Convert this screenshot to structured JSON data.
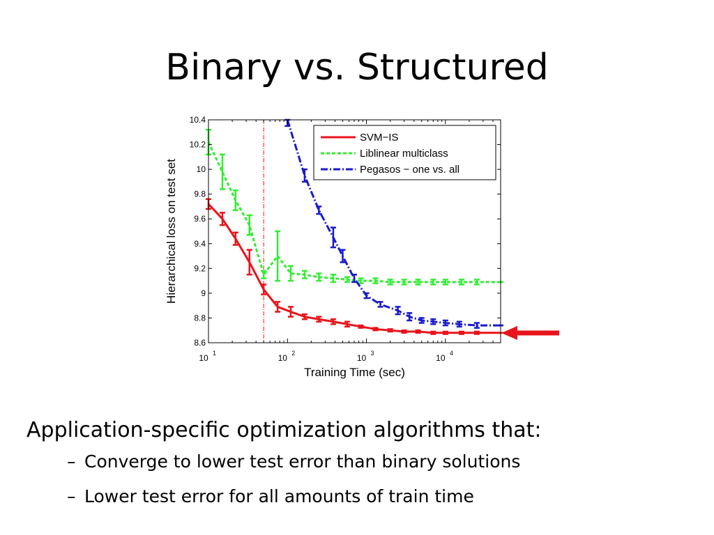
{
  "slide": {
    "title": "Binary vs. Structured",
    "bullet_main": "Application-specific optimization algorithms that:",
    "sub_bullets": [
      {
        "marker": "–",
        "text": "Converge to lower test error than binary solutions"
      },
      {
        "marker": "–",
        "text": "Lower test error for all amounts of train time"
      }
    ]
  },
  "chart_data": {
    "type": "line",
    "xlabel": "Training Time (sec)",
    "ylabel": "Hierarchical loss on test set",
    "xscale": "log",
    "xlim": [
      10,
      50000
    ],
    "ylim": [
      8.6,
      10.4
    ],
    "xticks": [
      {
        "value": 10,
        "base": "10",
        "exp": "1"
      },
      {
        "value": 100,
        "base": "10",
        "exp": "2"
      },
      {
        "value": 1000,
        "base": "10",
        "exp": "3"
      },
      {
        "value": 10000,
        "base": "10",
        "exp": "4"
      }
    ],
    "yticks": [
      8.6,
      8.8,
      9,
      9.2,
      9.4,
      9.6,
      9.8,
      10,
      10.2,
      10.4
    ],
    "ytick_labels": [
      "8.6",
      "8.8",
      "9",
      "9.2",
      "9.4",
      "9.6",
      "9.8",
      "10",
      "10.2",
      "10.4"
    ],
    "vertical_line_x": 50,
    "legend_position": "top-right",
    "annotation": "red arrow pointing at SVM-IS final loss",
    "series": [
      {
        "name": "SVM−IS",
        "color": "#e8141b",
        "dash": "solid",
        "x": [
          10,
          15,
          22,
          33,
          50,
          75,
          110,
          165,
          250,
          380,
          570,
          850,
          1300,
          2000,
          3000,
          4500,
          7000,
          10000,
          16000,
          25000,
          50000
        ],
        "y": [
          9.72,
          9.6,
          9.44,
          9.25,
          9.03,
          8.89,
          8.85,
          8.81,
          8.79,
          8.77,
          8.75,
          8.73,
          8.71,
          8.7,
          8.69,
          8.69,
          8.68,
          8.68,
          8.68,
          8.68,
          8.68
        ],
        "err": [
          0.04,
          0.05,
          0.05,
          0.1,
          0.04,
          0.04,
          0.04,
          0.02,
          0.02,
          0.02,
          0.02,
          0.01,
          0.01,
          0.01,
          0.01,
          0.01,
          0.01,
          0.01,
          0.01,
          0.01,
          0.0
        ]
      },
      {
        "name": "Liblinear multiclass",
        "color": "#33ee33",
        "dash": "dotted",
        "x": [
          10,
          15,
          22,
          33,
          50,
          75,
          110,
          165,
          250,
          380,
          570,
          850,
          1300,
          2000,
          3000,
          4500,
          7000,
          10000,
          16000,
          25000,
          50000
        ],
        "y": [
          10.22,
          9.98,
          9.75,
          9.55,
          9.15,
          9.3,
          9.16,
          9.15,
          9.13,
          9.12,
          9.11,
          9.1,
          9.1,
          9.09,
          9.09,
          9.09,
          9.09,
          9.09,
          9.09,
          9.09,
          9.09
        ],
        "err": [
          0.1,
          0.14,
          0.08,
          0.08,
          0.03,
          0.2,
          0.06,
          0.03,
          0.03,
          0.03,
          0.02,
          0.02,
          0.02,
          0.02,
          0.02,
          0.02,
          0.02,
          0.02,
          0.02,
          0.02,
          0.0
        ]
      },
      {
        "name": "Pegasos − one vs. all",
        "color": "#1a1acc",
        "dash": "dashdot",
        "x": [
          100,
          165,
          250,
          380,
          500,
          700,
          1000,
          1500,
          2500,
          3500,
          5000,
          7000,
          10000,
          15000,
          25000,
          50000
        ],
        "y": [
          10.4,
          9.95,
          9.67,
          9.45,
          9.3,
          9.12,
          8.98,
          8.91,
          8.86,
          8.81,
          8.78,
          8.77,
          8.76,
          8.75,
          8.74,
          8.74
        ],
        "err": [
          0.05,
          0.05,
          0.03,
          0.08,
          0.05,
          0.03,
          0.02,
          0.02,
          0.03,
          0.03,
          0.02,
          0.02,
          0.02,
          0.02,
          0.02,
          0.0
        ]
      }
    ]
  }
}
